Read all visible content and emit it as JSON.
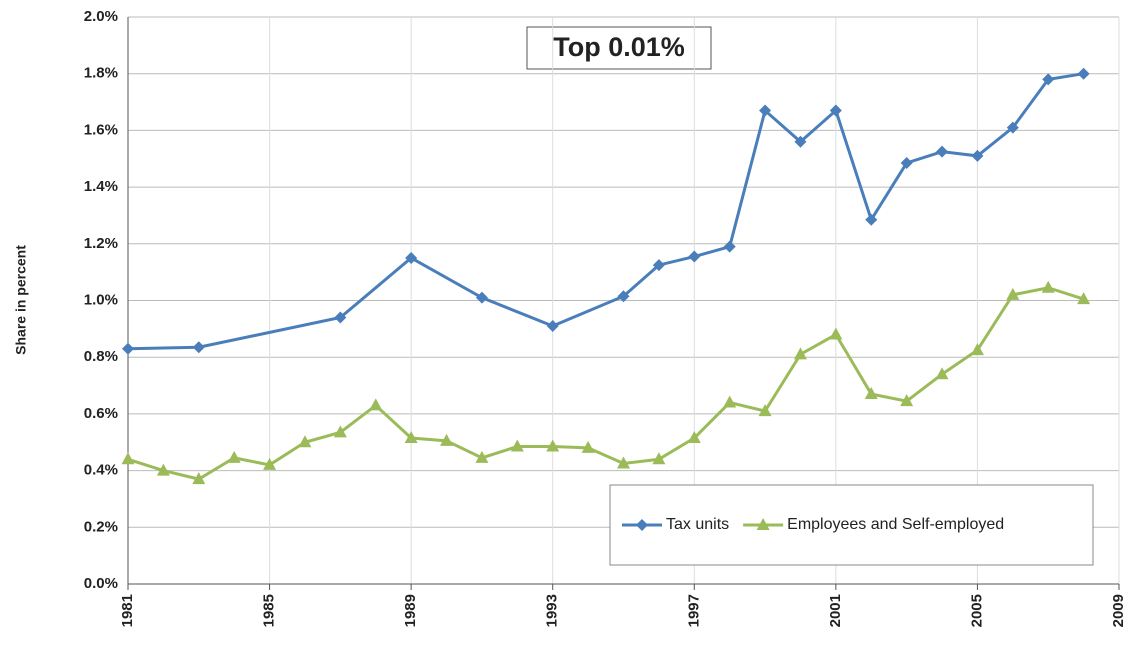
{
  "chart_data": {
    "type": "line",
    "title": "Top 0.01%",
    "y_label": "Share in percent",
    "xlim": [
      1981,
      2009
    ],
    "xticks": [
      1981,
      1985,
      1989,
      1993,
      1997,
      2001,
      2005,
      2009
    ],
    "ylim": [
      0,
      2.0
    ],
    "yticks": [
      {
        "value": 0,
        "label": "0.0%"
      },
      {
        "value": 0.2,
        "label": "0.2%"
      },
      {
        "value": 0.4,
        "label": "0.4%"
      },
      {
        "value": 0.6,
        "label": "0.6%"
      },
      {
        "value": 0.8,
        "label": "0.8%"
      },
      {
        "value": 1.0,
        "label": "1.0%"
      },
      {
        "value": 1.2,
        "label": "1.2%"
      },
      {
        "value": 1.4,
        "label": "1.4%"
      },
      {
        "value": 1.6,
        "label": "1.6%"
      },
      {
        "value": 1.8,
        "label": "1.8%"
      },
      {
        "value": 2.0,
        "label": "2.0%"
      }
    ],
    "grid": true,
    "legend": "lower right",
    "series": [
      {
        "name": "Tax units",
        "color": "#4a7ebb",
        "marker": "diamond",
        "x": [
          1981,
          1983,
          1987,
          1989,
          1991,
          1993,
          1995,
          1996,
          1997,
          1998,
          1999,
          2000,
          2001,
          2002,
          2003,
          2004,
          2005,
          2006,
          2007,
          2008
        ],
        "values": [
          0.83,
          0.835,
          0.94,
          1.15,
          1.01,
          0.91,
          1.015,
          1.125,
          1.155,
          1.19,
          1.67,
          1.56,
          1.67,
          1.285,
          1.485,
          1.525,
          1.51,
          1.61,
          1.78,
          1.8
        ]
      },
      {
        "name": "Employees and Self-employed",
        "color": "#9bbb59",
        "marker": "triangle",
        "x": [
          1981,
          1982,
          1983,
          1984,
          1985,
          1986,
          1987,
          1988,
          1989,
          1990,
          1991,
          1992,
          1993,
          1994,
          1995,
          1996,
          1997,
          1998,
          1999,
          2000,
          2001,
          2002,
          2003,
          2004,
          2005,
          2006,
          2007,
          2008
        ],
        "values": [
          0.44,
          0.4,
          0.37,
          0.445,
          0.42,
          0.5,
          0.535,
          0.63,
          0.515,
          0.505,
          0.445,
          0.485,
          0.485,
          0.48,
          0.425,
          0.44,
          0.515,
          0.64,
          0.61,
          0.81,
          0.88,
          0.67,
          0.645,
          0.74,
          0.825,
          1.02,
          1.045,
          1.005
        ]
      }
    ]
  }
}
